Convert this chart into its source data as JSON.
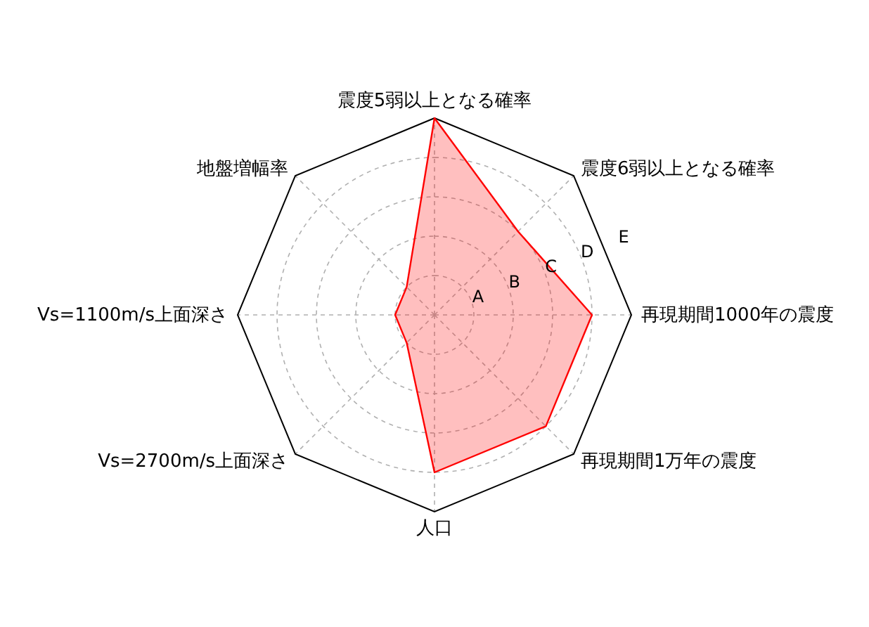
{
  "chart_data": {
    "type": "radar",
    "categories": [
      "震度5弱以上となる確率",
      "震度6弱以上となる確率",
      "再現期間1000年の震度",
      "再現期間1万年の震度",
      "人口",
      "Vs=2700m/s上面深さ",
      "Vs=1100m/s上面深さ",
      "地盤増幅率"
    ],
    "series": [
      {
        "color": "#ff0000",
        "values": [
          5,
          3,
          4,
          4,
          4,
          1,
          1,
          1
        ]
      }
    ],
    "ylim": [
      0,
      5
    ],
    "yticks": [
      {
        "value": 1,
        "label": "A"
      },
      {
        "value": 2,
        "label": "B"
      },
      {
        "value": 3,
        "label": "C"
      },
      {
        "value": 4,
        "label": "D"
      },
      {
        "value": 5,
        "label": "E"
      }
    ],
    "grid": true
  }
}
